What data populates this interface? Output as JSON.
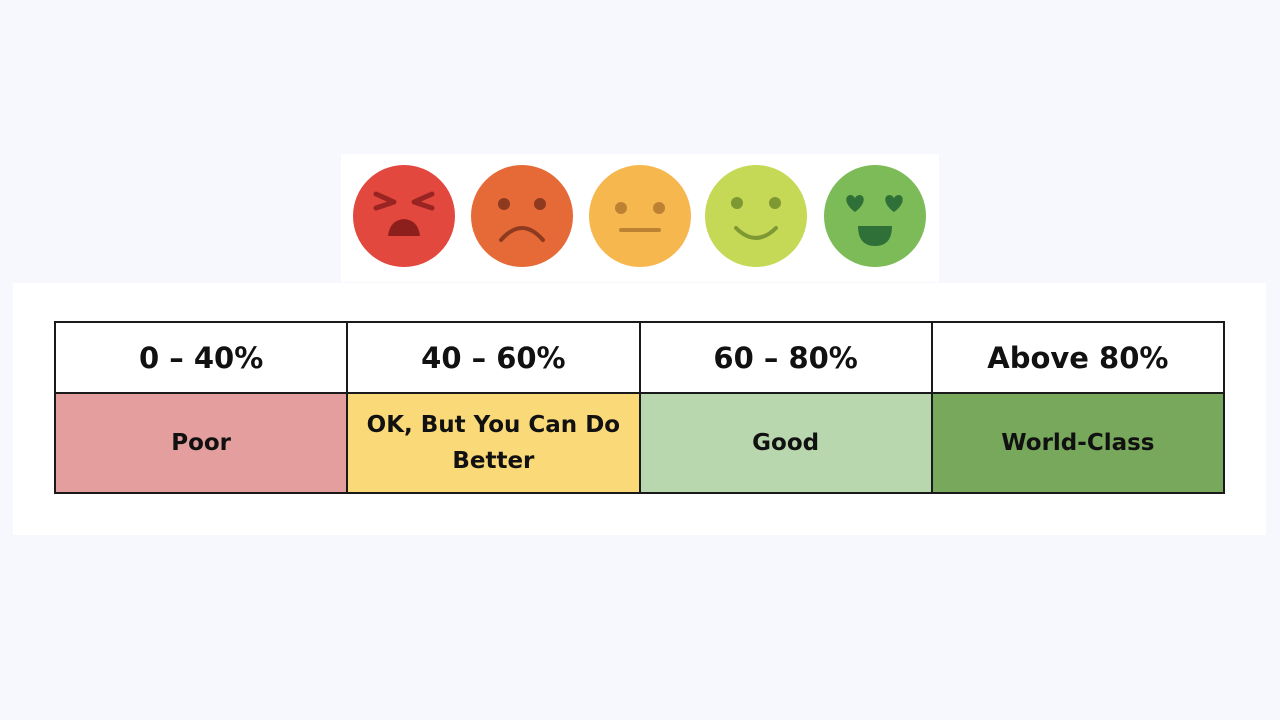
{
  "faces": [
    {
      "mood": "angry",
      "icon": "angry-face-icon",
      "color": "#e2483e"
    },
    {
      "mood": "sad",
      "icon": "sad-face-icon",
      "color": "#e66a37"
    },
    {
      "mood": "neutral",
      "icon": "neutral-face-icon",
      "color": "#f6b74f"
    },
    {
      "mood": "happy",
      "icon": "happy-face-icon",
      "color": "#c6d957"
    },
    {
      "mood": "love",
      "icon": "heart-eyes-face-icon",
      "color": "#7cbb57"
    }
  ],
  "scale": {
    "ranges": [
      "0 – 40%",
      "40 – 60%",
      "60 – 80%",
      "Above 80%"
    ],
    "ratings": [
      {
        "label": "Poor",
        "color": "#e49e9d"
      },
      {
        "label": "OK, But You Can Do Better",
        "color": "#fad979"
      },
      {
        "label": "Good",
        "color": "#b9d7ae"
      },
      {
        "label": "World-Class",
        "color": "#78a85b"
      }
    ]
  }
}
